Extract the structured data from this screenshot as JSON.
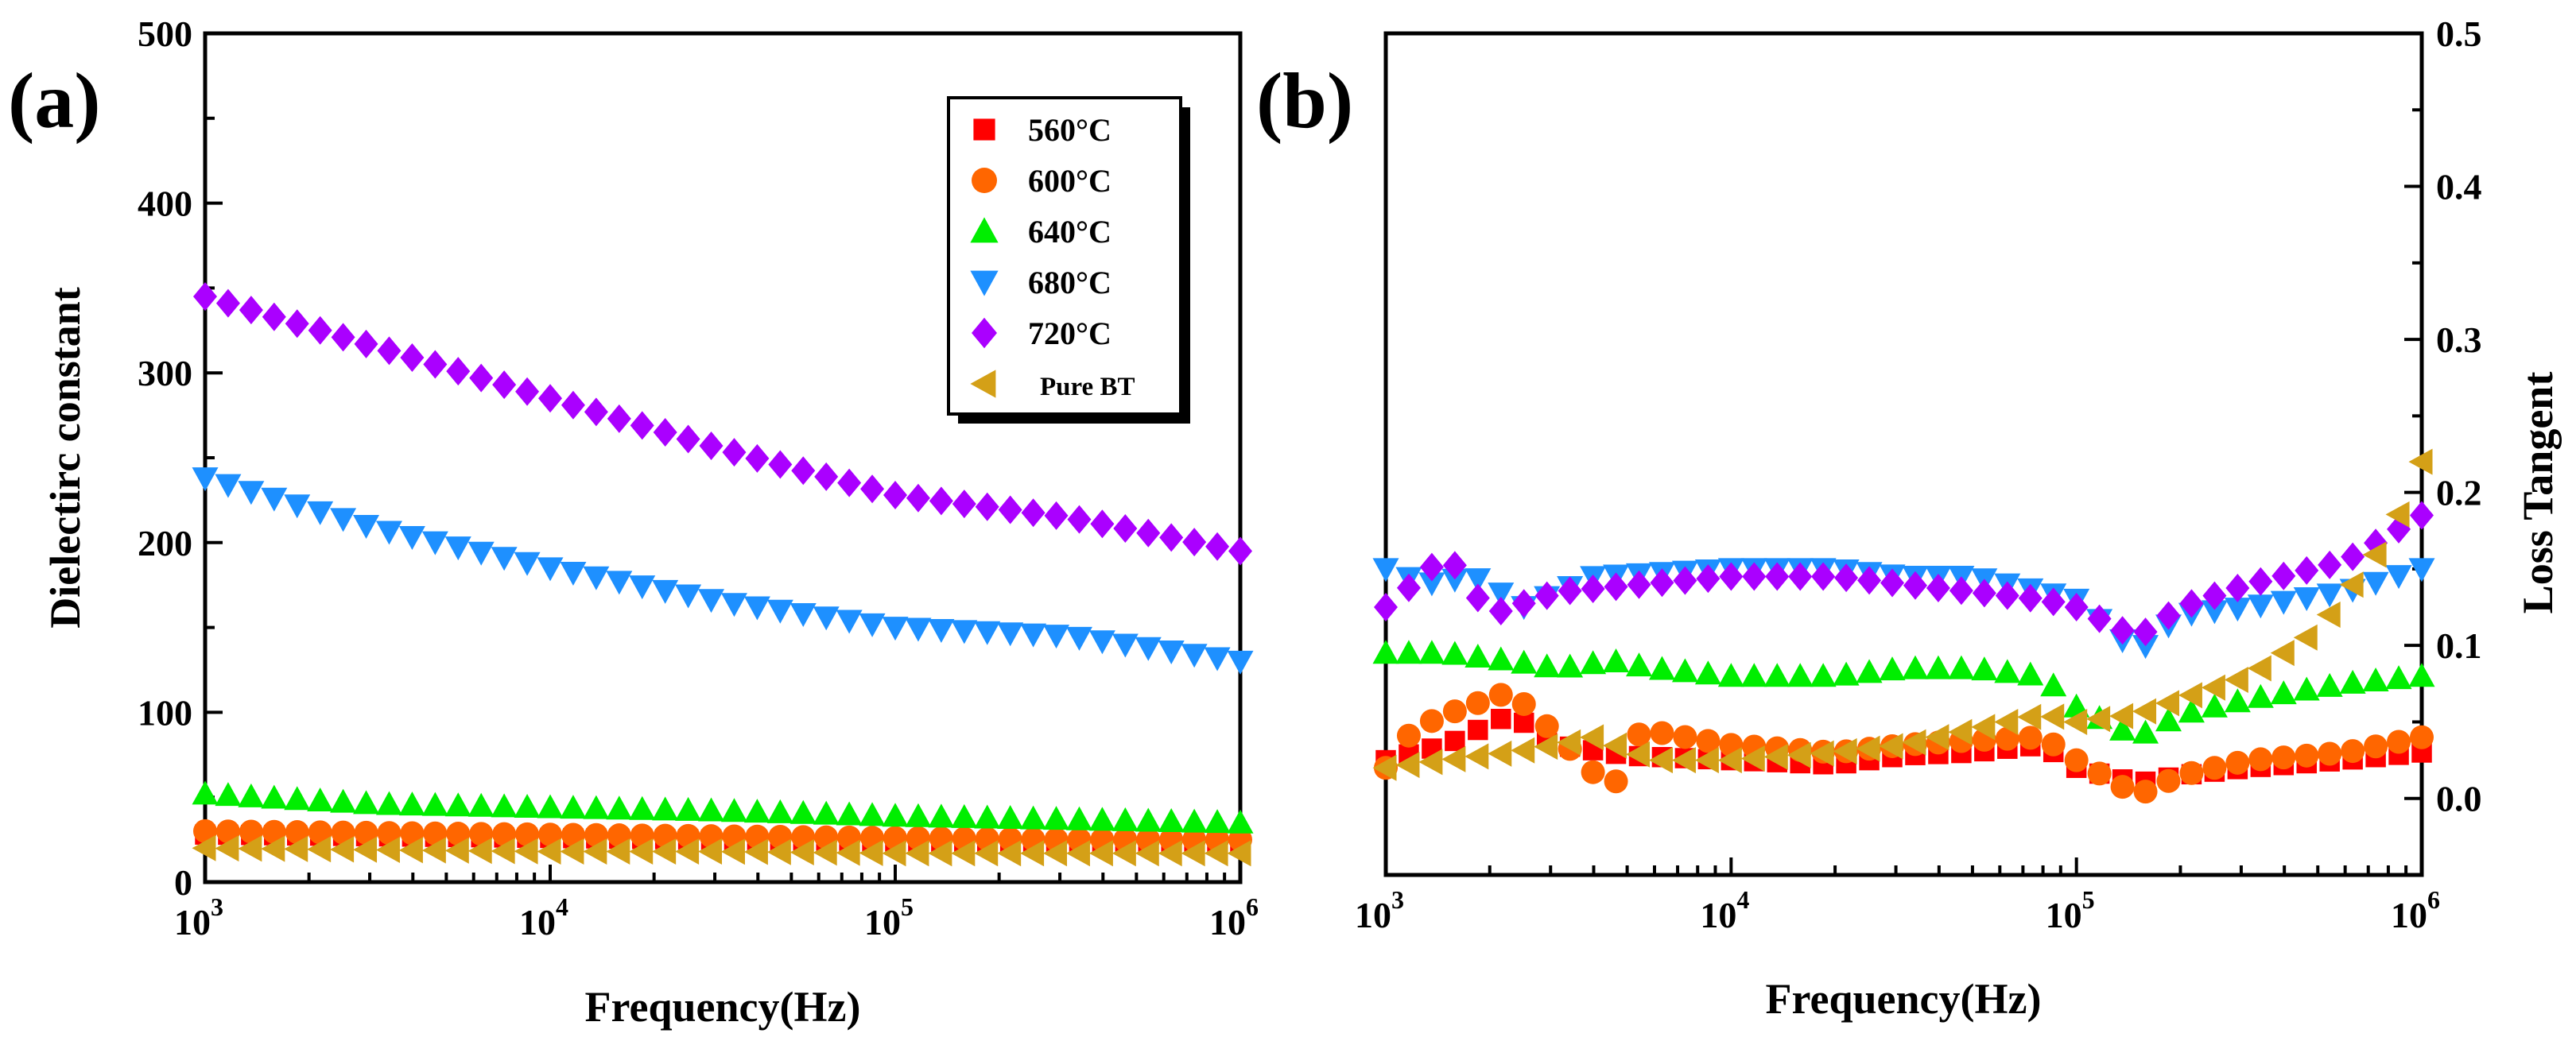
{
  "figure": {
    "panels": [
      "(a)",
      "(b)"
    ]
  },
  "colors": {
    "560C": "#ff0000",
    "600C": "#ff6600",
    "640C": "#00ee00",
    "680C": "#1e90ff",
    "720C": "#aa00ff",
    "PureBT": "#d4a017"
  },
  "chart_data": [
    {
      "type": "scatter",
      "panel": "(a)",
      "xscale": "log",
      "xlim": [
        1000,
        1000000
      ],
      "ylim": [
        0,
        500
      ],
      "xticks": [
        "10^3",
        "10^4",
        "10^5",
        "10^6"
      ],
      "yticks": [
        "0",
        "100",
        "200",
        "300",
        "400",
        "500"
      ],
      "xlabel": "Frequency(Hz)",
      "ylabel": "Dielectirc constant",
      "legend_position": "top-right",
      "series": [
        {
          "name": "560°C",
          "marker": "square",
          "color_key": "560C",
          "x": [
            1000,
            3162,
            10000,
            31623,
            100000,
            316228,
            1000000
          ],
          "y": [
            28,
            27,
            26,
            25,
            24,
            23,
            23
          ]
        },
        {
          "name": "600°C",
          "marker": "circle",
          "color_key": "600C",
          "x": [
            1000,
            3162,
            10000,
            31623,
            100000,
            316228,
            1000000
          ],
          "y": [
            30,
            29,
            28,
            27,
            26,
            25,
            25
          ]
        },
        {
          "name": "640°C",
          "marker": "triangle-up",
          "color_key": "640C",
          "x": [
            1000,
            3162,
            10000,
            31623,
            100000,
            316228,
            1000000
          ],
          "y": [
            52,
            46,
            44,
            42,
            39,
            37,
            35
          ]
        },
        {
          "name": "680°C",
          "marker": "triangle-down",
          "color_key": "680C",
          "x": [
            1000,
            3162,
            10000,
            31623,
            100000,
            316228,
            1000000
          ],
          "y": [
            238,
            208,
            185,
            165,
            150,
            145,
            130
          ]
        },
        {
          "name": "720°C",
          "marker": "diamond",
          "color_key": "720C",
          "x": [
            1000,
            3162,
            10000,
            31623,
            100000,
            316228,
            1000000
          ],
          "y": [
            345,
            315,
            285,
            255,
            228,
            215,
            195
          ]
        },
        {
          "name": "Pure BT",
          "marker": "triangle-left",
          "color_key": "PureBT",
          "x": [
            1000,
            3162,
            10000,
            31623,
            100000,
            316228,
            1000000
          ],
          "y": [
            20,
            19,
            18,
            18,
            17,
            17,
            17
          ]
        }
      ]
    },
    {
      "type": "scatter",
      "panel": "(b)",
      "xscale": "log",
      "xlim": [
        1000,
        1000000
      ],
      "ylim": [
        -0.05,
        0.5
      ],
      "xticks": [
        "10^3",
        "10^4",
        "10^5",
        "10^6"
      ],
      "yticks": [
        "0.0",
        "0.1",
        "0.2",
        "0.3",
        "0.4",
        "0.5"
      ],
      "xlabel": "Frequency(Hz)",
      "ylabel": "Loss Tangent",
      "series": [
        {
          "name": "560°C",
          "marker": "square",
          "color_key": "560C",
          "x": [
            1000,
            1500,
            2300,
            3162,
            5000,
            10000,
            20000,
            31623,
            50000,
            80000,
            100000,
            150000,
            200000,
            316228,
            600000,
            1000000
          ],
          "y": [
            0.025,
            0.035,
            0.055,
            0.035,
            0.028,
            0.025,
            0.022,
            0.028,
            0.03,
            0.035,
            0.02,
            0.01,
            0.015,
            0.02,
            0.025,
            0.03
          ]
        },
        {
          "name": "600°C",
          "marker": "circle",
          "color_key": "600C",
          "x": [
            1000,
            1200,
            1500,
            2300,
            3162,
            4500,
            5500,
            10000,
            20000,
            31623,
            50000,
            80000,
            100000,
            150000,
            200000,
            316228,
            600000,
            1000000
          ],
          "y": [
            0.02,
            0.045,
            0.055,
            0.07,
            0.04,
            0.005,
            0.045,
            0.035,
            0.03,
            0.035,
            0.038,
            0.04,
            0.025,
            0.002,
            0.015,
            0.025,
            0.03,
            0.04
          ]
        },
        {
          "name": "640°C",
          "marker": "triangle-up",
          "color_key": "640C",
          "x": [
            1000,
            1500,
            2300,
            3162,
            4500,
            6000,
            10000,
            20000,
            31623,
            50000,
            80000,
            100000,
            150000,
            200000,
            316228,
            600000,
            1000000
          ],
          "y": [
            0.095,
            0.095,
            0.09,
            0.085,
            0.09,
            0.085,
            0.08,
            0.08,
            0.085,
            0.085,
            0.08,
            0.06,
            0.04,
            0.055,
            0.065,
            0.075,
            0.08
          ]
        },
        {
          "name": "680°C",
          "marker": "triangle-down",
          "color_key": "680C",
          "x": [
            1000,
            1300,
            1800,
            2500,
            4000,
            10000,
            20000,
            31623,
            50000,
            80000,
            100000,
            150000,
            200000,
            316228,
            600000,
            1000000
          ],
          "y": [
            0.15,
            0.14,
            0.145,
            0.125,
            0.145,
            0.15,
            0.15,
            0.145,
            0.145,
            0.135,
            0.13,
            0.095,
            0.12,
            0.125,
            0.135,
            0.15
          ]
        },
        {
          "name": "720°C",
          "marker": "diamond",
          "color_key": "720C",
          "x": [
            1000,
            1200,
            1500,
            2000,
            3162,
            10000,
            20000,
            31623,
            50000,
            80000,
            100000,
            150000,
            200000,
            316228,
            600000,
            1000000
          ],
          "y": [
            0.125,
            0.14,
            0.16,
            0.12,
            0.135,
            0.145,
            0.145,
            0.14,
            0.135,
            0.13,
            0.125,
            0.105,
            0.125,
            0.14,
            0.155,
            0.185
          ]
        },
        {
          "name": "Pure BT",
          "marker": "triangle-left",
          "color_key": "PureBT",
          "x": [
            1000,
            1500,
            2300,
            3162,
            4000,
            6000,
            10000,
            20000,
            31623,
            50000,
            80000,
            100000,
            150000,
            200000,
            316228,
            500000,
            800000,
            1000000
          ],
          "y": [
            0.02,
            0.025,
            0.03,
            0.035,
            0.04,
            0.025,
            0.025,
            0.03,
            0.035,
            0.045,
            0.055,
            0.05,
            0.055,
            0.065,
            0.08,
            0.11,
            0.17,
            0.22
          ]
        }
      ]
    }
  ]
}
